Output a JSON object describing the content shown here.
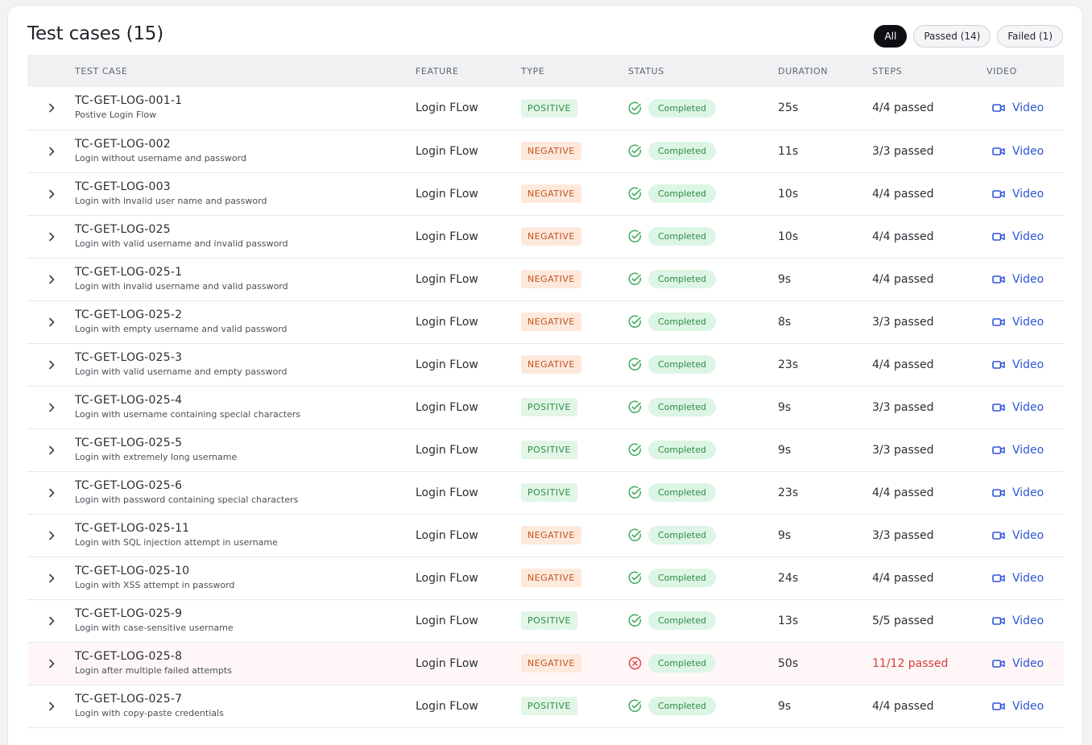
{
  "page": {
    "title": "Test cases (15)"
  },
  "filters": [
    {
      "label": "All",
      "active": true
    },
    {
      "label": "Passed (14)",
      "active": false
    },
    {
      "label": "Failed (1)",
      "active": false
    }
  ],
  "columns": {
    "test_case": "TEST CASE",
    "feature": "FEATURE",
    "type": "TYPE",
    "status": "STATUS",
    "duration": "DURATION",
    "steps": "STEPS",
    "video": "VIDEO"
  },
  "colors": {
    "positive": "#2e8b47",
    "negative": "#c2541f",
    "success_icon": "#3daa5c",
    "fail_icon": "#e04848",
    "link": "#2f56d6"
  },
  "rows": [
    {
      "id": "TC-GET-LOG-001-1",
      "description": "Postive Login Flow",
      "feature": "Login FLow",
      "type": "POSITIVE",
      "status": "Completed",
      "result": "pass",
      "duration": "25s",
      "steps": "4/4 passed",
      "video": "Video"
    },
    {
      "id": "TC-GET-LOG-002",
      "description": "Login without username and password",
      "feature": "Login FLow",
      "type": "NEGATIVE",
      "status": "Completed",
      "result": "pass",
      "duration": "11s",
      "steps": "3/3 passed",
      "video": "Video"
    },
    {
      "id": "TC-GET-LOG-003",
      "description": "Login with invalid user name and password",
      "feature": "Login FLow",
      "type": "NEGATIVE",
      "status": "Completed",
      "result": "pass",
      "duration": "10s",
      "steps": "4/4 passed",
      "video": "Video"
    },
    {
      "id": "TC-GET-LOG-025",
      "description": "Login with valid username and invalid password",
      "feature": "Login FLow",
      "type": "NEGATIVE",
      "status": "Completed",
      "result": "pass",
      "duration": "10s",
      "steps": "4/4 passed",
      "video": "Video"
    },
    {
      "id": "TC-GET-LOG-025-1",
      "description": "Login with invalid username and valid password",
      "feature": "Login FLow",
      "type": "NEGATIVE",
      "status": "Completed",
      "result": "pass",
      "duration": "9s",
      "steps": "4/4 passed",
      "video": "Video"
    },
    {
      "id": "TC-GET-LOG-025-2",
      "description": "Login with empty username and valid password",
      "feature": "Login FLow",
      "type": "NEGATIVE",
      "status": "Completed",
      "result": "pass",
      "duration": "8s",
      "steps": "3/3 passed",
      "video": "Video"
    },
    {
      "id": "TC-GET-LOG-025-3",
      "description": "Login with valid username and empty password",
      "feature": "Login FLow",
      "type": "NEGATIVE",
      "status": "Completed",
      "result": "pass",
      "duration": "23s",
      "steps": "4/4 passed",
      "video": "Video"
    },
    {
      "id": "TC-GET-LOG-025-4",
      "description": "Login with username containing special characters",
      "feature": "Login FLow",
      "type": "POSITIVE",
      "status": "Completed",
      "result": "pass",
      "duration": "9s",
      "steps": "3/3 passed",
      "video": "Video"
    },
    {
      "id": "TC-GET-LOG-025-5",
      "description": "Login with extremely long username",
      "feature": "Login FLow",
      "type": "POSITIVE",
      "status": "Completed",
      "result": "pass",
      "duration": "9s",
      "steps": "3/3 passed",
      "video": "Video"
    },
    {
      "id": "TC-GET-LOG-025-6",
      "description": "Login with password containing special characters",
      "feature": "Login FLow",
      "type": "POSITIVE",
      "status": "Completed",
      "result": "pass",
      "duration": "23s",
      "steps": "4/4 passed",
      "video": "Video"
    },
    {
      "id": "TC-GET-LOG-025-11",
      "description": "Login with SQL injection attempt in username",
      "feature": "Login FLow",
      "type": "NEGATIVE",
      "status": "Completed",
      "result": "pass",
      "duration": "9s",
      "steps": "3/3 passed",
      "video": "Video"
    },
    {
      "id": "TC-GET-LOG-025-10",
      "description": "Login with XSS attempt in password",
      "feature": "Login FLow",
      "type": "NEGATIVE",
      "status": "Completed",
      "result": "pass",
      "duration": "24s",
      "steps": "4/4 passed",
      "video": "Video"
    },
    {
      "id": "TC-GET-LOG-025-9",
      "description": "Login with case-sensitive username",
      "feature": "Login FLow",
      "type": "POSITIVE",
      "status": "Completed",
      "result": "pass",
      "duration": "13s",
      "steps": "5/5 passed",
      "video": "Video"
    },
    {
      "id": "TC-GET-LOG-025-8",
      "description": "Login after multiple failed attempts",
      "feature": "Login FLow",
      "type": "NEGATIVE",
      "status": "Completed",
      "result": "fail",
      "duration": "50s",
      "steps": "11/12 passed",
      "video": "Video"
    },
    {
      "id": "TC-GET-LOG-025-7",
      "description": "Login with copy-paste credentials",
      "feature": "Login FLow",
      "type": "POSITIVE",
      "status": "Completed",
      "result": "pass",
      "duration": "9s",
      "steps": "4/4 passed",
      "video": "Video"
    }
  ]
}
